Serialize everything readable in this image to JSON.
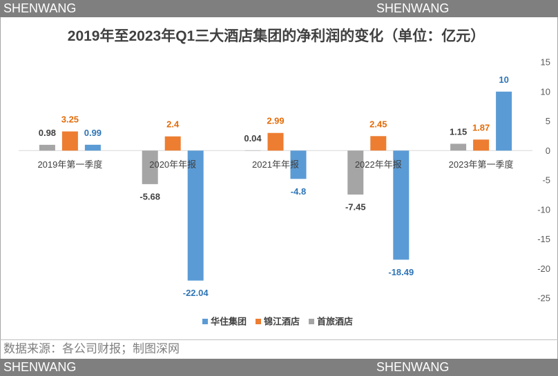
{
  "brand": {
    "watermark": "SHENWANG"
  },
  "source_note": "数据来源：各公司财报；制图深网",
  "chart_data": {
    "type": "bar",
    "title": "2019年至2023年Q1三大酒店集团的净利润的变化（单位：亿元）",
    "xlabel": "",
    "ylabel": "",
    "categories": [
      "2019年第一季度",
      "2020年年报",
      "2021年年报",
      "2022年年报",
      "2023年第一季度"
    ],
    "series": [
      {
        "name": "华住集团",
        "color": "#5B9BD5",
        "label_color": "#2E75B6",
        "values": [
          0.99,
          -22.04,
          -4.8,
          -18.49,
          10
        ]
      },
      {
        "name": "锦江酒店",
        "color": "#ED7D31",
        "label_color": "#E36C0A",
        "values": [
          3.25,
          2.4,
          2.99,
          2.45,
          1.87
        ]
      },
      {
        "name": "首旅酒店",
        "color": "#A5A5A5",
        "label_color": "#404040",
        "values": [
          0.98,
          -5.68,
          0.04,
          -7.45,
          1.15
        ]
      }
    ],
    "ylim": [
      -25,
      15
    ],
    "yticks": [
      15,
      10,
      5,
      0,
      -5,
      -10,
      -15,
      -20,
      -25
    ],
    "grid": false,
    "legend": "bottom",
    "data_labels": true
  }
}
